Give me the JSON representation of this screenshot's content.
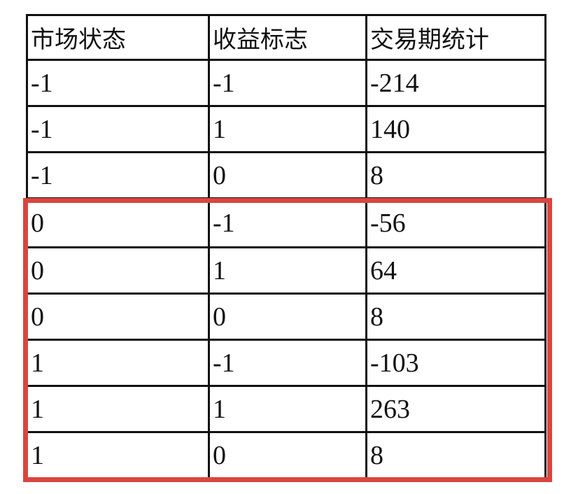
{
  "table": {
    "headers": [
      "市场状态",
      "收益标志",
      "交易期统计"
    ],
    "rows": [
      [
        "-1",
        "-1",
        "-214"
      ],
      [
        "-1",
        "1",
        "140"
      ],
      [
        "-1",
        "0",
        "8"
      ],
      [
        "0",
        "-1",
        "-56"
      ],
      [
        "0",
        "1",
        "64"
      ],
      [
        "0",
        "0",
        "8"
      ],
      [
        "1",
        "-1",
        "-103"
      ],
      [
        "1",
        "1",
        "263"
      ],
      [
        "1",
        "0",
        "8"
      ]
    ]
  },
  "highlight": {
    "color": "#d9463f",
    "rows": "0 and 1 market states"
  }
}
